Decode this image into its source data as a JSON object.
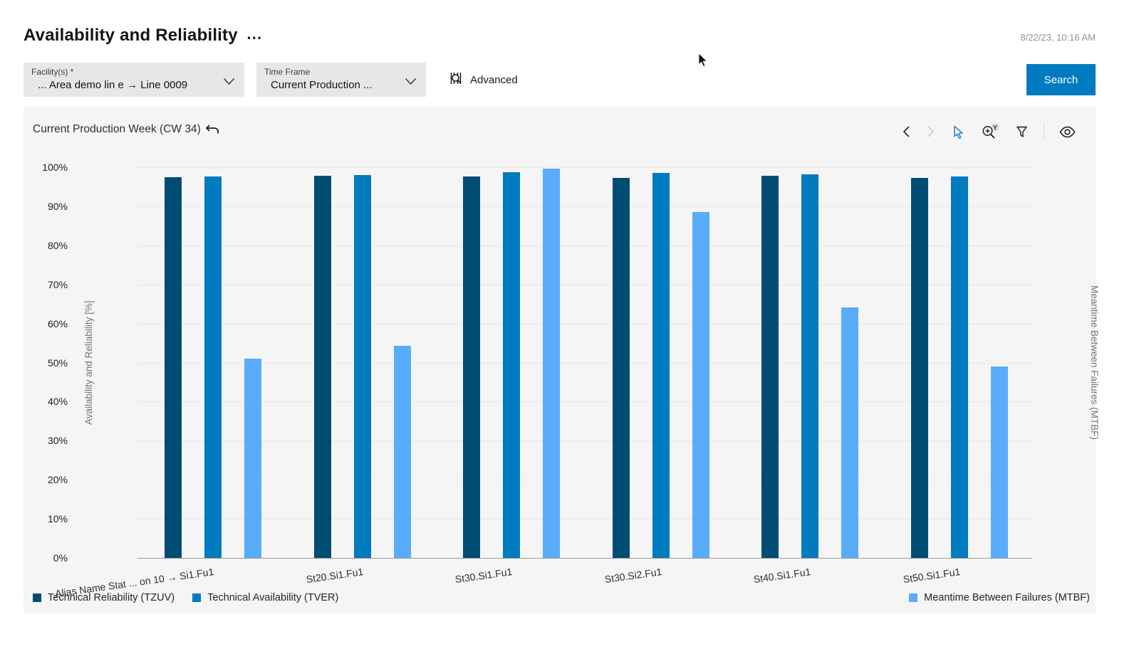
{
  "header": {
    "title": "Availability and Reliability",
    "overflow_menu": "⋯",
    "timestamp": "8/22/23, 10:16 AM"
  },
  "filters": {
    "facility": {
      "label": "Facility(s) *",
      "value": "... Area demo lin e → Line 0009"
    },
    "time_frame": {
      "label": "Time Frame",
      "value": "Current Production ..."
    },
    "advanced_label": "Advanced",
    "search_label": "Search"
  },
  "toolbar": {
    "icons": [
      "chevron-left",
      "chevron-right",
      "pointer-select",
      "zoom-y-axis",
      "filter",
      "eye"
    ],
    "zoom_badge": "Y"
  },
  "chart_header": {
    "title": "Current Production Week (CW 34)"
  },
  "chart_data": {
    "type": "bar",
    "title": "Current Production Week (CW 34)",
    "categories": [
      "Alias Name Stat ... on 10 → Si1.Fu1",
      "St20.Si1.Fu1",
      "St30.Si1.Fu1",
      "St30.Si2.Fu1",
      "St40.Si1.Fu1",
      "St50.Si1.Fu1"
    ],
    "series": [
      {
        "name": "Technical Reliability (TZUV)",
        "axis": "left",
        "unit": "%",
        "color": "#004D73",
        "values": [
          97.5,
          97.8,
          97.6,
          97.2,
          97.9,
          97.3
        ]
      },
      {
        "name": "Technical Availability (TVER)",
        "axis": "left",
        "unit": "%",
        "color": "#007BC0",
        "values": [
          97.7,
          98.0,
          98.7,
          98.5,
          98.1,
          97.7
        ]
      },
      {
        "name": "Meantime Between Failures (MTBF)",
        "axis": "right",
        "unit": "hh:mm:ss",
        "color": "#58ACFA",
        "values_time": [
          "00:30:36",
          "00:32:35",
          "00:59:49",
          "00:53:06",
          "00:38:31",
          "00:29:24"
        ],
        "values_pct_of_axis": [
          51.0,
          54.3,
          99.7,
          88.5,
          64.2,
          49.0
        ]
      }
    ],
    "left_axis": {
      "label": "Availability and Reliability [%]",
      "range": [
        0,
        100
      ],
      "ticks": [
        "100%",
        "90%",
        "80%",
        "70%",
        "60%",
        "50%",
        "40%",
        "30%",
        "20%",
        "10%",
        "0%"
      ]
    },
    "right_axis": {
      "label": "Meantime Between Failures (MTBF)",
      "range": [
        "00:00:00",
        "01:00:00"
      ],
      "ticks": [
        "01:00:00",
        "00:50:00",
        "00:40:00",
        "00:30:00",
        "00:20:00",
        "00:10:00",
        "00:00:00"
      ]
    },
    "grid": true,
    "legend_position": "bottom"
  }
}
